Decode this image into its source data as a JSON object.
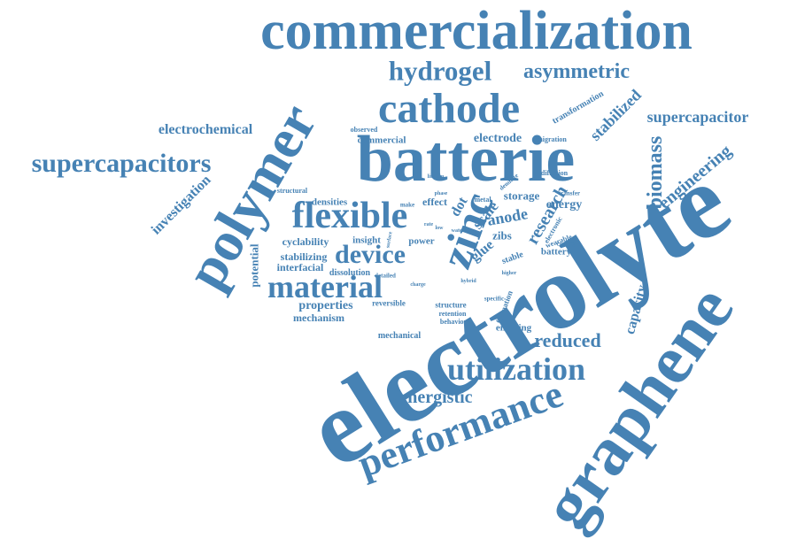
{
  "colors": {
    "word": "#4682b4",
    "background": "#ffffff"
  },
  "words": [
    {
      "text": "commercialization"
    },
    {
      "text": "hydrogel"
    },
    {
      "text": "asymmetric"
    },
    {
      "text": "cathode"
    },
    {
      "text": "polymer"
    },
    {
      "text": "batterie"
    },
    {
      "text": "electrochemical"
    },
    {
      "text": "supercapacitors"
    },
    {
      "text": "supercapacitor"
    },
    {
      "text": "transformation"
    },
    {
      "text": "stabilized"
    },
    {
      "text": "observed"
    },
    {
      "text": "commercial"
    },
    {
      "text": "electrode"
    },
    {
      "text": "migration"
    },
    {
      "text": "biomass"
    },
    {
      "text": "engineering"
    },
    {
      "text": "investigation"
    },
    {
      "text": "structural"
    },
    {
      "text": "densities"
    },
    {
      "text": "flexible"
    },
    {
      "text": "effect"
    },
    {
      "text": "storage"
    },
    {
      "text": "energy"
    },
    {
      "text": "research"
    },
    {
      "text": "anode"
    },
    {
      "text": "scale"
    },
    {
      "text": "zinc"
    },
    {
      "text": "dot"
    },
    {
      "text": "electrolyte"
    },
    {
      "text": "potential"
    },
    {
      "text": "cyclability"
    },
    {
      "text": "insight"
    },
    {
      "text": "power"
    },
    {
      "text": "zibs"
    },
    {
      "text": "battery"
    },
    {
      "text": "device"
    },
    {
      "text": "stabilizing"
    },
    {
      "text": "interfacial"
    },
    {
      "text": "glue"
    },
    {
      "text": "stable"
    },
    {
      "text": "material"
    },
    {
      "text": "dissolution"
    },
    {
      "text": "detailed"
    },
    {
      "text": "properties"
    },
    {
      "text": "reversible"
    },
    {
      "text": "mechanism"
    },
    {
      "text": "structure"
    },
    {
      "text": "retention"
    },
    {
      "text": "behavior"
    },
    {
      "text": "specific"
    },
    {
      "text": "formation"
    },
    {
      "text": "capacity"
    },
    {
      "text": "graphene"
    },
    {
      "text": "enabling"
    },
    {
      "text": "reduced"
    },
    {
      "text": "mechanical"
    },
    {
      "text": "utilization"
    },
    {
      "text": "synergistic"
    },
    {
      "text": "performance"
    },
    {
      "text": "diffusion"
    },
    {
      "text": "dendrite"
    },
    {
      "text": "lithium"
    },
    {
      "text": "transfer"
    },
    {
      "text": "wearable"
    },
    {
      "text": "cycling"
    },
    {
      "text": "electronic"
    },
    {
      "text": "metal"
    },
    {
      "text": "higher"
    },
    {
      "text": "hybrid"
    },
    {
      "text": "charge"
    },
    {
      "text": "make"
    },
    {
      "text": "phase"
    },
    {
      "text": "surface"
    },
    {
      "text": "low"
    },
    {
      "text": "water"
    },
    {
      "text": "rate"
    }
  ]
}
